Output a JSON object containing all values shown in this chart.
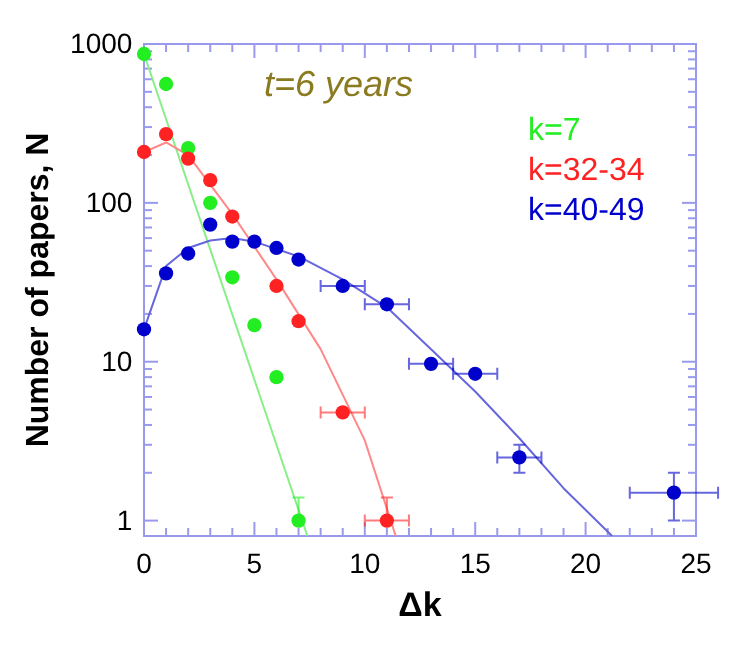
{
  "chart_data": {
    "type": "scatter",
    "xlabel": "Δk",
    "ylabel": "Number of papers, N",
    "log": "y",
    "marker": "circle",
    "legend": "top right",
    "annotations": [
      "t=6 years"
    ],
    "xlim": [
      0,
      25
    ],
    "ylim": [
      0.8,
      1000
    ],
    "xticks": [
      0,
      {
        "value": 1,
        "label": null
      },
      {
        "value": 2,
        "label": null
      },
      {
        "value": 3,
        "label": null
      },
      {
        "value": 4,
        "label": null
      },
      5,
      {
        "value": 6,
        "label": null
      },
      {
        "value": 7,
        "label": null
      },
      {
        "value": 8,
        "label": null
      },
      {
        "value": 9,
        "label": null
      },
      10,
      {
        "value": 11,
        "label": null
      },
      {
        "value": 12,
        "label": null
      },
      {
        "value": 13,
        "label": null
      },
      {
        "value": 14,
        "label": null
      },
      15,
      {
        "value": 16,
        "label": null
      },
      {
        "value": 17,
        "label": null
      },
      {
        "value": 18,
        "label": null
      },
      {
        "value": 19,
        "label": null
      },
      20,
      {
        "value": 21,
        "label": null
      },
      {
        "value": 22,
        "label": null
      },
      {
        "value": 23,
        "label": null
      },
      {
        "value": 24,
        "label": null
      },
      25
    ],
    "yticks": [
      1,
      {
        "value": 2,
        "label": null
      },
      {
        "value": 3,
        "label": null
      },
      {
        "value": 4,
        "label": null
      },
      {
        "value": 5,
        "label": null
      },
      {
        "value": 6,
        "label": null
      },
      {
        "value": 7,
        "label": null
      },
      {
        "value": 8,
        "label": null
      },
      {
        "value": 9,
        "label": null
      },
      10,
      {
        "value": 20,
        "label": null
      },
      {
        "value": 30,
        "label": null
      },
      {
        "value": 40,
        "label": null
      },
      {
        "value": 50,
        "label": null
      },
      {
        "value": 60,
        "label": null
      },
      {
        "value": 70,
        "label": null
      },
      {
        "value": 80,
        "label": null
      },
      {
        "value": 90,
        "label": null
      },
      100,
      {
        "value": 200,
        "label": null
      },
      {
        "value": 300,
        "label": null
      },
      {
        "value": 400,
        "label": null
      },
      {
        "value": 500,
        "label": null
      },
      {
        "value": 600,
        "label": null
      },
      {
        "value": 700,
        "label": null
      },
      {
        "value": 800,
        "label": null
      },
      {
        "value": 900,
        "label": null
      },
      1000
    ],
    "series": [
      {
        "type": "line",
        "marker": "none",
        "color": "#88ee88",
        "x": [
          0,
          7.4
        ],
        "values": [
          865,
          0.8
        ]
      },
      {
        "type": "line",
        "marker": "none",
        "color": "#ff8888",
        "x": [
          0,
          1,
          2,
          4,
          6,
          8,
          10,
          11.4
        ],
        "values": [
          209,
          240,
          200,
          85,
          33,
          12,
          3.2,
          0.8
        ]
      },
      {
        "type": "line",
        "marker": "none",
        "color": "#6666dd",
        "x": [
          0,
          1,
          2,
          3,
          4,
          5,
          7,
          9,
          11,
          13,
          15,
          17,
          19,
          21.2
        ],
        "values": [
          16,
          40,
          52,
          58,
          60,
          57,
          46,
          33,
          22,
          12,
          6.5,
          3.3,
          1.6,
          0.8
        ]
      },
      {
        "name": "k=7",
        "color": "#22ee22",
        "x": [
          0,
          1,
          2,
          3,
          4,
          5,
          6,
          7
        ],
        "values": [
          865,
          560,
          221,
          100,
          34,
          17,
          8,
          1
        ],
        "errors": [
          null,
          null,
          null,
          null,
          null,
          null,
          null,
          [
            1,
            1.4
          ]
        ]
      },
      {
        "name": "k=32-34",
        "color": "#ff2222",
        "x": [
          0,
          1,
          2,
          3,
          4,
          6,
          7,
          9,
          11
        ],
        "values": [
          209,
          271,
          190,
          139,
          82,
          30,
          18,
          4.8,
          1
        ],
        "xerrors": [
          null,
          null,
          null,
          null,
          null,
          null,
          null,
          1,
          1
        ],
        "errors": [
          null,
          null,
          null,
          null,
          null,
          null,
          null,
          null,
          [
            1,
            1.4
          ]
        ]
      },
      {
        "name": "k=40-49",
        "color": "#0000cc",
        "x": [
          0,
          1,
          2,
          3,
          4,
          5,
          6,
          7,
          9,
          11,
          13,
          15,
          17,
          24
        ],
        "values": [
          16,
          36,
          48,
          73,
          57,
          57,
          52,
          44,
          30,
          23,
          9.7,
          8.4,
          2.5,
          1.5
        ],
        "xerrors": [
          null,
          null,
          null,
          null,
          null,
          null,
          null,
          null,
          1,
          1,
          1,
          1,
          1,
          2
        ],
        "errors": [
          null,
          null,
          null,
          null,
          null,
          null,
          null,
          null,
          null,
          null,
          null,
          null,
          [
            2,
            3
          ],
          [
            1,
            2
          ]
        ]
      }
    ]
  }
}
